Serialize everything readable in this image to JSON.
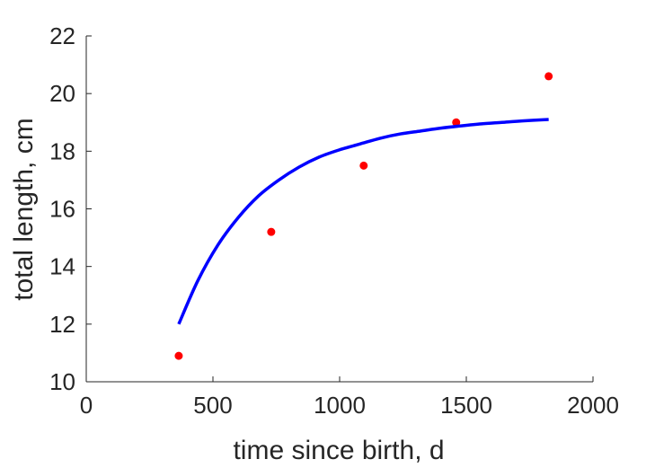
{
  "chart_data": {
    "type": "scatter",
    "title": "",
    "xlabel": "time since birth, d",
    "ylabel": "total length, cm",
    "xlim": [
      0,
      2000
    ],
    "ylim": [
      10,
      22
    ],
    "xticks": [
      0,
      500,
      1000,
      1500,
      2000
    ],
    "yticks": [
      10,
      12,
      14,
      16,
      18,
      20,
      22
    ],
    "grid": false,
    "legend": "none",
    "series": [
      {
        "kind": "points",
        "color": "#ff0000",
        "x": [
          365,
          730,
          1095,
          1460,
          1825
        ],
        "y": [
          10.9,
          15.2,
          17.5,
          19.0,
          20.6
        ]
      },
      {
        "kind": "line",
        "color": "#0000ff",
        "x": [
          365,
          440,
          520,
          600,
          680,
          760,
          840,
          920,
          1000,
          1080,
          1160,
          1240,
          1320,
          1400,
          1480,
          1560,
          1640,
          1720,
          1825
        ],
        "y": [
          12.0,
          13.5,
          14.75,
          15.7,
          16.45,
          17.0,
          17.45,
          17.8,
          18.05,
          18.25,
          18.45,
          18.6,
          18.7,
          18.8,
          18.88,
          18.95,
          19.0,
          19.05,
          19.1
        ]
      }
    ]
  }
}
